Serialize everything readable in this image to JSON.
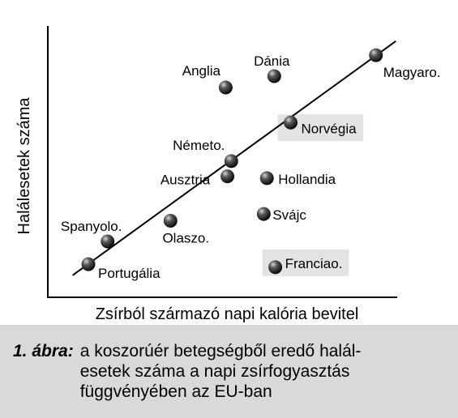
{
  "chart_data": {
    "type": "scatter",
    "xlabel": "Zsírból származó napi kalória bevitel",
    "ylabel": "Halálesetek száma",
    "grid": false,
    "points": [
      {
        "label": "Magyaro.",
        "x": 0.939,
        "y": 0.892,
        "highlight": false
      },
      {
        "label": "Dánia",
        "x": 0.648,
        "y": 0.815,
        "highlight": false
      },
      {
        "label": "Anglia",
        "x": 0.509,
        "y": 0.773,
        "highlight": false
      },
      {
        "label": "Norvégia",
        "x": 0.695,
        "y": 0.644,
        "highlight": true
      },
      {
        "label": "Németo.",
        "x": 0.525,
        "y": 0.502,
        "highlight": false
      },
      {
        "label": "Ausztria",
        "x": 0.514,
        "y": 0.446,
        "highlight": false
      },
      {
        "label": "Hollandia",
        "x": 0.627,
        "y": 0.439,
        "highlight": false
      },
      {
        "label": "Svájc",
        "x": 0.618,
        "y": 0.307,
        "highlight": false
      },
      {
        "label": "Olaszo.",
        "x": 0.351,
        "y": 0.282,
        "highlight": false
      },
      {
        "label": "Spanyolo.",
        "x": 0.171,
        "y": 0.206,
        "highlight": false
      },
      {
        "label": "Franciao.",
        "x": 0.651,
        "y": 0.111,
        "highlight": true
      },
      {
        "label": "Portugália",
        "x": 0.116,
        "y": 0.122,
        "highlight": false
      }
    ],
    "trendline": {
      "x": [
        0.071,
        0.996
      ],
      "y": [
        0.081,
        0.944
      ]
    }
  },
  "caption": {
    "number": "1. ábra:",
    "lines": [
      "a koszorúér betegségből eredő halál-",
      "esetek száma a napi zsírfogyasztás",
      "függvényében az EU-ban"
    ]
  }
}
